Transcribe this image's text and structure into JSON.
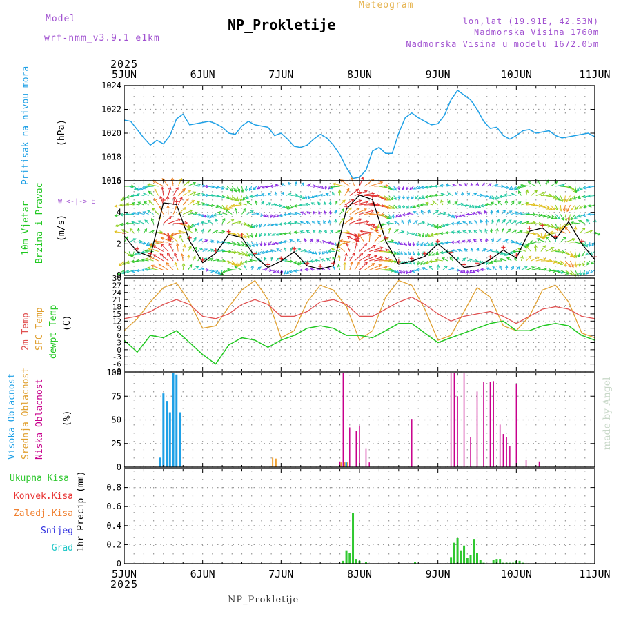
{
  "header": {
    "model_label": "Model",
    "model_name": "wrf-nmm_v3.9.1 e1km",
    "station": "NP_Prokletije",
    "meteogram": "Meteogram",
    "lonlat": "lon,lat (19.91E, 42.53N)",
    "altitude": "Nadmorska Visina 1760m",
    "model_altitude": "Nadmorska Visina u modelu 1672.05m",
    "footer_station": "NP_Prokletije",
    "watermark": "made by Angel"
  },
  "x_axis": {
    "year": "2025",
    "day_labels": [
      "5JUN",
      "6JUN",
      "7JUN",
      "8JUN",
      "9JUN",
      "10JUN",
      "11JUN"
    ]
  },
  "panels": {
    "pressure": {
      "label": "Pritisak na nivou mora",
      "unit": "(hPa)"
    },
    "wind": {
      "label1": "10m Vjetar",
      "label2": "Brzina i Pravac",
      "unit": "(m/s)",
      "compass": "W <-|-> E"
    },
    "temp": {
      "label1": "2m Temp",
      "label2": "SFC Temp",
      "label3": "dewpt Temp",
      "unit": "(C)"
    },
    "cloud": {
      "label1": "Visoka Oblacnost",
      "label2": "Srednja Oblacnost",
      "label3": "Niska Oblacnost",
      "unit": "(%)"
    },
    "precip": {
      "unit": "1hr Precip (mm)",
      "legend": [
        "Ukupna Kisa",
        "Konvek.Kisa",
        "Zaledj.Kisa",
        "Snijeg",
        "Grad"
      ]
    }
  },
  "colors": {
    "pressure": "#1ea0e6",
    "temp2m": "#e05050",
    "sfc": "#e0a030",
    "dewpt": "#20c820",
    "high_cloud": "#1ea0e6",
    "mid_cloud": "#f0a030",
    "low_cloud": "#c8008c",
    "total_rain": "#30c830",
    "conv_rain": "#e83030",
    "freezing": "#f08030",
    "snow": "#3030e0",
    "hail": "#20c8c8",
    "label_model": "#a050d0",
    "label_header": "#e6b450"
  },
  "chart_data": [
    {
      "type": "line",
      "name": "pressure",
      "ylim": [
        1016,
        1024
      ],
      "yticks": [
        1016,
        1018,
        1020,
        1022,
        1024
      ],
      "x": [
        0,
        2,
        4,
        6,
        8,
        10,
        12,
        14,
        16,
        18,
        20,
        22,
        24,
        26,
        28,
        30,
        32,
        34,
        36,
        38,
        40,
        42,
        44,
        46,
        48,
        50,
        52,
        54,
        56,
        58,
        60,
        62,
        64,
        66,
        68,
        70,
        72,
        74,
        76,
        78,
        80,
        82,
        84,
        86,
        88,
        90,
        92,
        94,
        96,
        98,
        100,
        102,
        104,
        106,
        108,
        110,
        112,
        114,
        116,
        118,
        120,
        122,
        124,
        126,
        128,
        130,
        132,
        134,
        136,
        138,
        140,
        142,
        144
      ],
      "series": [
        {
          "values": [
            1021.1,
            1021.0,
            1020.3,
            1019.6,
            1019.0,
            1019.4,
            1019.1,
            1019.8,
            1021.2,
            1021.6,
            1020.7,
            1020.8,
            1020.9,
            1021.0,
            1020.8,
            1020.5,
            1020.0,
            1019.9,
            1020.6,
            1021.0,
            1020.7,
            1020.6,
            1020.5,
            1019.8,
            1020.0,
            1019.5,
            1018.9,
            1018.8,
            1019.0,
            1019.5,
            1019.9,
            1019.6,
            1019.0,
            1018.2,
            1017.1,
            1016.2,
            1016.3,
            1016.9,
            1018.5,
            1018.8,
            1018.3,
            1018.3,
            1020.0,
            1021.3,
            1021.7,
            1021.3,
            1021.0,
            1020.7,
            1020.8,
            1021.5,
            1022.8,
            1023.6,
            1023.2,
            1022.8,
            1022.0,
            1021.0,
            1020.4,
            1020.5,
            1019.8,
            1019.5,
            1019.8,
            1020.2,
            1020.3,
            1020.0,
            1020.1,
            1020.2,
            1019.8,
            1019.6,
            1019.7,
            1019.8,
            1019.9,
            1020.0,
            1019.7
          ]
        }
      ]
    },
    {
      "type": "line",
      "name": "wind_speed",
      "ylim": [
        0,
        6
      ],
      "yticks": [
        0,
        2,
        4,
        6
      ],
      "x": [
        0,
        4,
        8,
        12,
        16,
        20,
        24,
        28,
        32,
        36,
        40,
        44,
        48,
        52,
        56,
        60,
        64,
        68,
        72,
        76,
        80,
        84,
        88,
        92,
        96,
        100,
        104,
        108,
        112,
        116,
        120,
        124,
        128,
        132,
        136,
        140,
        144
      ],
      "series": [
        {
          "values": [
            2.5,
            1.5,
            1.2,
            4.6,
            4.5,
            2.2,
            0.8,
            1.4,
            2.6,
            2.4,
            1.2,
            0.5,
            0.9,
            1.5,
            0.6,
            0.4,
            0.6,
            4.2,
            5.1,
            4.8,
            2.2,
            0.7,
            0.9,
            1.2,
            2.0,
            1.3,
            0.5,
            0.6,
            1.0,
            1.6,
            1.1,
            2.8,
            3.0,
            2.3,
            3.4,
            2.0,
            1.0
          ]
        }
      ]
    },
    {
      "type": "line",
      "name": "temperature",
      "ylim": [
        -9,
        30
      ],
      "yticks": [
        -9,
        -6,
        -3,
        0,
        3,
        6,
        9,
        12,
        15,
        18,
        21,
        24,
        27,
        30
      ],
      "x": [
        0,
        4,
        8,
        12,
        16,
        20,
        24,
        28,
        32,
        36,
        40,
        44,
        48,
        52,
        56,
        60,
        64,
        68,
        72,
        76,
        80,
        84,
        88,
        92,
        96,
        100,
        104,
        108,
        112,
        116,
        120,
        124,
        128,
        132,
        136,
        140,
        144
      ],
      "series": [
        {
          "name": "2m Temp",
          "values": [
            13,
            14,
            16,
            19,
            21,
            19,
            14,
            13,
            15,
            19,
            21,
            19,
            14,
            14,
            16,
            20,
            21,
            19,
            14,
            14,
            17,
            20,
            22,
            19,
            15,
            12,
            14,
            15,
            16,
            14,
            11,
            14,
            17,
            18,
            17,
            14,
            13
          ]
        },
        {
          "name": "SFC Temp",
          "values": [
            8,
            13,
            20,
            26,
            28,
            20,
            9,
            10,
            18,
            25,
            29,
            21,
            5,
            8,
            20,
            27,
            25,
            18,
            4,
            8,
            22,
            29,
            27,
            17,
            4,
            6,
            16,
            26,
            22,
            10,
            8,
            14,
            25,
            27,
            20,
            7,
            5
          ]
        },
        {
          "name": "dewpt Temp",
          "values": [
            4,
            -1,
            6,
            5,
            8,
            3,
            -2,
            -6,
            2,
            5,
            4,
            1,
            4,
            6,
            9,
            10,
            9,
            6,
            6,
            5,
            8,
            11,
            11,
            7,
            3,
            5,
            7,
            9,
            11,
            12,
            8,
            8,
            10,
            11,
            10,
            6,
            4
          ]
        }
      ]
    },
    {
      "type": "bar",
      "name": "cloud_cover",
      "ylim": [
        0,
        100
      ],
      "yticks": [
        0,
        25,
        50,
        75,
        100
      ],
      "series": [
        {
          "name": "Visoka Oblacnost",
          "x": [
            11,
            12,
            13,
            14,
            15,
            16,
            17,
            68
          ],
          "values": [
            10,
            78,
            70,
            58,
            100,
            98,
            58,
            5
          ]
        },
        {
          "name": "Srednja Oblacnost",
          "x": [
            45,
            46,
            66,
            67,
            68
          ],
          "values": [
            10,
            9,
            5,
            5,
            5
          ]
        },
        {
          "name": "Niska Oblacnost",
          "x": [
            66,
            67,
            69,
            71,
            72,
            74,
            75,
            88,
            100,
            101,
            102,
            104,
            106,
            108,
            110,
            112,
            113,
            115,
            116,
            117,
            118,
            120,
            123,
            127
          ],
          "values": [
            6,
            100,
            42,
            38,
            44,
            20,
            5,
            51,
            100,
            100,
            75,
            100,
            32,
            80,
            90,
            90,
            91,
            45,
            35,
            32,
            22,
            88,
            8,
            6
          ]
        }
      ]
    },
    {
      "type": "bar",
      "name": "precipitation",
      "ylim": [
        0,
        1
      ],
      "yticks": [
        0,
        0.2,
        0.4,
        0.6,
        0.8
      ],
      "series": [
        {
          "name": "Ukupna Kisa",
          "x": [
            67,
            68,
            69,
            70,
            71,
            72,
            74,
            89,
            100,
            101,
            102,
            103,
            104,
            105,
            106,
            107,
            108,
            109,
            110,
            113,
            114,
            115,
            116,
            117,
            118,
            119,
            120,
            121,
            122
          ],
          "values": [
            0.03,
            0.14,
            0.11,
            0.53,
            0.05,
            0.03,
            0.02,
            0.02,
            0.07,
            0.22,
            0.27,
            0.14,
            0.19,
            0.06,
            0.09,
            0.26,
            0.11,
            0.04,
            0.01,
            0.04,
            0.05,
            0.05,
            0.01,
            0.01,
            0.01,
            0.01,
            0.03,
            0.03,
            0.01
          ]
        }
      ]
    }
  ]
}
